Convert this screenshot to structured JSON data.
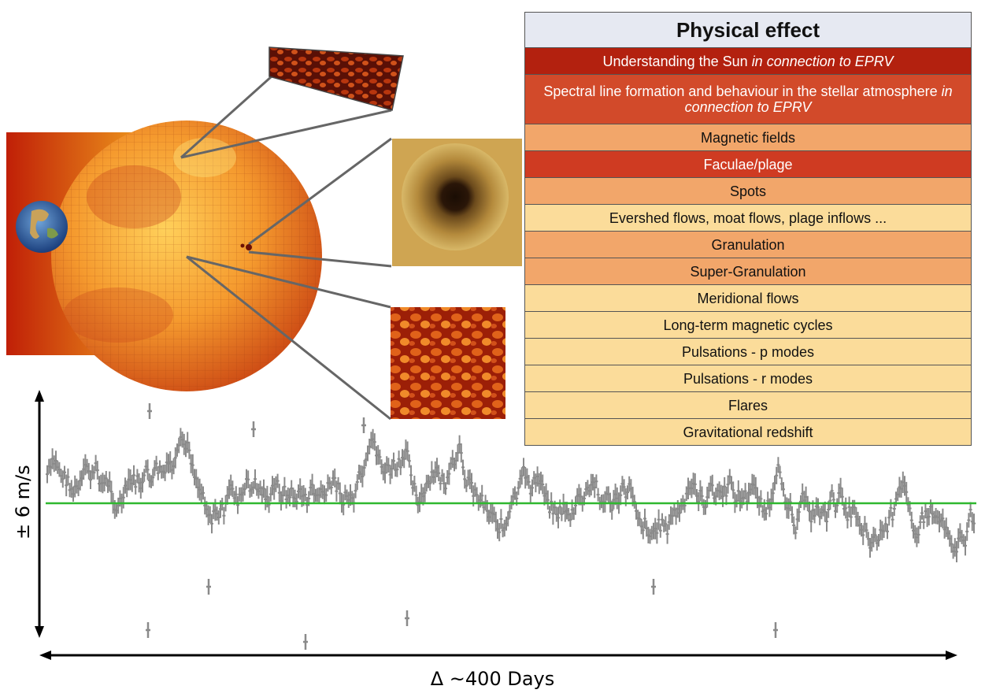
{
  "table": {
    "header": "Physical effect",
    "rows": [
      {
        "text": "Understanding the Sun",
        "italic": "in connection to EPRV",
        "color": "#b3210f",
        "text_color": "#ffffff"
      },
      {
        "text": "Spectral line formation and behaviour in the stellar atmosphere",
        "italic": "in connection to EPRV",
        "color": "#d24a2a",
        "text_color": "#ffffff"
      },
      {
        "text": "Magnetic fields",
        "italic": "",
        "color": "#f2a66a",
        "text_color": "#111111"
      },
      {
        "text": "Faculae/plage",
        "italic": "",
        "color": "#cf3b22",
        "text_color": "#ffffff"
      },
      {
        "text": "Spots",
        "italic": "",
        "color": "#f2a66a",
        "text_color": "#111111"
      },
      {
        "text": "Evershed flows, moat flows, plage inflows ...",
        "italic": "",
        "color": "#fbdc9a",
        "text_color": "#111111"
      },
      {
        "text": "Granulation",
        "italic": "",
        "color": "#f2a66a",
        "text_color": "#111111"
      },
      {
        "text": "Super-Granulation",
        "italic": "",
        "color": "#f2a66a",
        "text_color": "#111111"
      },
      {
        "text": "Meridional flows",
        "italic": "",
        "color": "#fbdc9a",
        "text_color": "#111111"
      },
      {
        "text": "Long-term magnetic cycles",
        "italic": "",
        "color": "#fbdc9a",
        "text_color": "#111111"
      },
      {
        "text": "Pulsations - p modes",
        "italic": "",
        "color": "#fbdc9a",
        "text_color": "#111111"
      },
      {
        "text": "Pulsations - r modes",
        "italic": "",
        "color": "#fbdc9a",
        "text_color": "#111111"
      },
      {
        "text": "Flares",
        "italic": "",
        "color": "#fbdc9a",
        "text_color": "#111111"
      },
      {
        "text": "Gravitational redshift",
        "italic": "",
        "color": "#fbdc9a",
        "text_color": "#111111"
      }
    ]
  },
  "timeseries": {
    "y_label": "± 6 m/s",
    "x_label": "Δ ~400 Days",
    "series_color": "#8a8a8a",
    "zero_line_color": "#2fb82f"
  },
  "colors": {
    "table_header": "#e6e9f2",
    "sun_light": "#f7a23a",
    "sun_dark": "#d8561a"
  }
}
